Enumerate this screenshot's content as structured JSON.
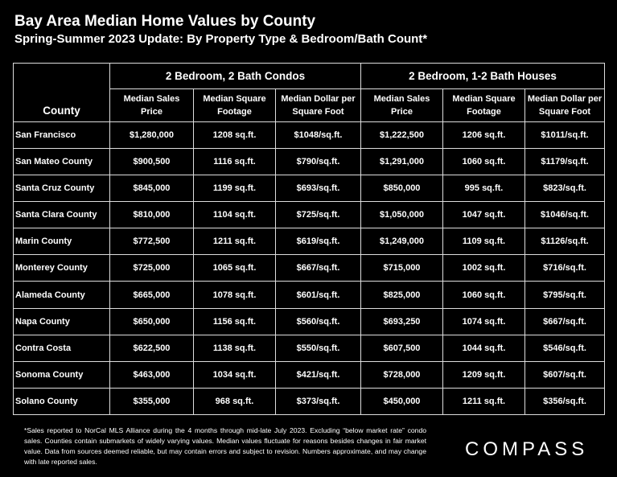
{
  "header": {
    "title": "Bay Area Median Home Values by County",
    "subtitle": "Spring-Summer 2023 Update:  By Property Type & Bedroom/Bath Count*"
  },
  "table": {
    "corner": "County",
    "groups": [
      "2 Bedroom, 2 Bath Condos",
      "2 Bedroom, 1-2 Bath Houses"
    ],
    "columns": [
      "Median Sales Price",
      "Median Square Footage",
      "Median Dollar per Square Foot",
      "Median Sales Price",
      "Median Square Footage",
      "Median Dollar per Square Foot"
    ],
    "rows": [
      [
        "San Francisco",
        "$1,280,000",
        "1208 sq.ft.",
        "$1048/sq.ft.",
        "$1,222,500",
        "1206 sq.ft.",
        "$1011/sq.ft."
      ],
      [
        "San Mateo County",
        "$900,500",
        "1116 sq.ft.",
        "$790/sq.ft.",
        "$1,291,000",
        "1060 sq.ft.",
        "$1179/sq.ft."
      ],
      [
        "Santa Cruz County",
        "$845,000",
        "1199 sq.ft.",
        "$693/sq.ft.",
        "$850,000",
        "995 sq.ft.",
        "$823/sq.ft."
      ],
      [
        "Santa Clara County",
        "$810,000",
        "1104 sq.ft.",
        "$725/sq.ft.",
        "$1,050,000",
        "1047 sq.ft.",
        "$1046/sq.ft."
      ],
      [
        "Marin County",
        "$772,500",
        "1211 sq.ft.",
        "$619/sq.ft.",
        "$1,249,000",
        "1109 sq.ft.",
        "$1126/sq.ft."
      ],
      [
        "Monterey County",
        "$725,000",
        "1065 sq.ft.",
        "$667/sq.ft.",
        "$715,000",
        "1002 sq.ft.",
        "$716/sq.ft."
      ],
      [
        "Alameda County",
        "$665,000",
        "1078 sq.ft.",
        "$601/sq.ft.",
        "$825,000",
        "1060 sq.ft.",
        "$795/sq.ft."
      ],
      [
        "Napa County",
        "$650,000",
        "1156 sq.ft.",
        "$560/sq.ft.",
        "$693,250",
        "1074 sq.ft.",
        "$667/sq.ft."
      ],
      [
        "Contra Costa",
        "$622,500",
        "1138 sq.ft.",
        "$550/sq.ft.",
        "$607,500",
        "1044 sq.ft.",
        "$546/sq.ft."
      ],
      [
        "Sonoma County",
        "$463,000",
        "1034 sq.ft.",
        "$421/sq.ft.",
        "$728,000",
        "1209 sq.ft.",
        "$607/sq.ft."
      ],
      [
        "Solano County",
        "$355,000",
        "968 sq.ft.",
        "$373/sq.ft.",
        "$450,000",
        "1211 sq.ft.",
        "$356/sq.ft."
      ]
    ]
  },
  "footnote": "*Sales reported to NorCal MLS Alliance during the 4 months through mid-late July 2023. Excluding “below market rate” condo sales. Counties contain submarkets of widely varying values. Median values fluctuate for reasons besides changes in fair market value. Data from sources deemed reliable, but may contain errors and subject to revision.  Numbers approximate, and may change with late reported sales.",
  "logo": "COMPASS"
}
